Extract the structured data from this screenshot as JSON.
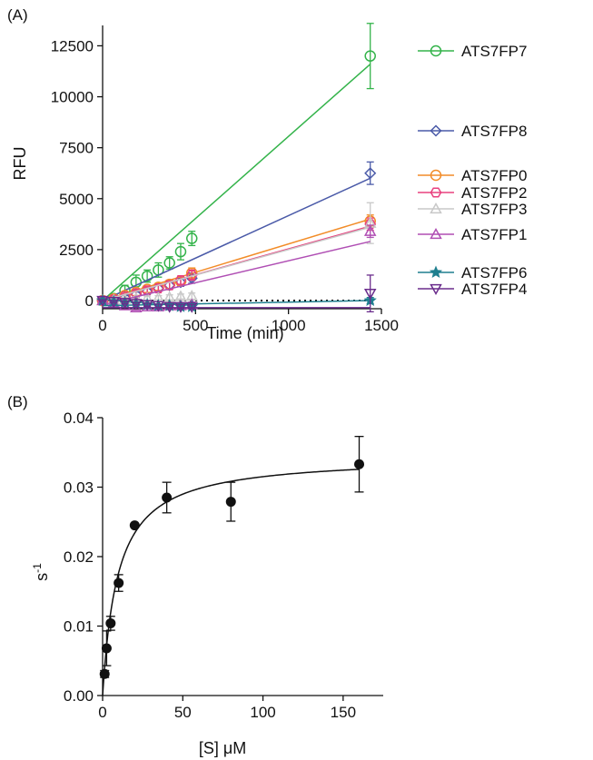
{
  "panels": {
    "a": "(A)",
    "b": "(B)"
  },
  "chart_data": [
    {
      "type": "line",
      "xlabel": "Time (min)",
      "ylabel": "RFU",
      "xlim": [
        0,
        1500
      ],
      "ylim": [
        -400,
        13500
      ],
      "xticks": [
        0,
        500,
        1000,
        1500
      ],
      "yticks": [
        0,
        2500,
        5000,
        7500,
        10000,
        12500
      ],
      "xtick_labels": [
        "0",
        "500",
        "1000",
        "1500"
      ],
      "ytick_labels": [
        "0",
        "2500",
        "5000",
        "7500",
        "10000",
        "12500"
      ],
      "legend_position": "right",
      "baseline": {
        "style": "dotted",
        "x": [
          0,
          1440
        ],
        "y": [
          0,
          0
        ]
      },
      "series": [
        {
          "name": "ATS7FP7",
          "color": "#33b34a",
          "marker": "circle",
          "x": [
            0,
            60,
            120,
            180,
            240,
            300,
            360,
            420,
            480,
            1440
          ],
          "y": [
            0,
            100,
            500,
            900,
            1200,
            1500,
            1850,
            2400,
            3050,
            12000
          ],
          "err": [
            80,
            150,
            250,
            350,
            300,
            350,
            300,
            400,
            350,
            1600
          ],
          "fit": [
            [
              0,
              0
            ],
            [
              1440,
              11600
            ]
          ]
        },
        {
          "name": "ATS7FP8",
          "color": "#4a5aa8",
          "marker": "diamond",
          "x": [
            0,
            60,
            120,
            180,
            240,
            300,
            360,
            420,
            480,
            1440
          ],
          "y": [
            0,
            50,
            150,
            300,
            450,
            600,
            750,
            900,
            1100,
            6250
          ],
          "err": [
            60,
            80,
            100,
            120,
            150,
            150,
            200,
            200,
            250,
            550
          ],
          "fit": [
            [
              0,
              0
            ],
            [
              1440,
              6000
            ]
          ]
        },
        {
          "name": "ATS7FP0",
          "color": "#f28c28",
          "marker": "circle",
          "x": [
            0,
            60,
            120,
            180,
            240,
            300,
            360,
            420,
            480,
            1440
          ],
          "y": [
            0,
            80,
            250,
            400,
            550,
            650,
            800,
            950,
            1350,
            3900
          ],
          "err": [
            60,
            100,
            150,
            150,
            150,
            150,
            200,
            200,
            250,
            300
          ],
          "fit": [
            [
              0,
              0
            ],
            [
              1440,
              4000
            ]
          ]
        },
        {
          "name": "ATS7FP2",
          "color": "#e8407e",
          "marker": "hexagon",
          "x": [
            0,
            60,
            120,
            180,
            240,
            300,
            360,
            420,
            480,
            1440
          ],
          "y": [
            0,
            50,
            200,
            350,
            500,
            600,
            750,
            1000,
            1250,
            3750
          ],
          "err": [
            60,
            100,
            120,
            150,
            150,
            150,
            200,
            200,
            250,
            300
          ],
          "fit": [
            [
              0,
              0
            ],
            [
              1440,
              3650
            ]
          ]
        },
        {
          "name": "ATS7FP3",
          "color": "#c8c8c8",
          "marker": "triangle-up",
          "x": [
            0,
            60,
            120,
            180,
            240,
            300,
            360,
            420,
            480,
            1440
          ],
          "y": [
            0,
            20,
            60,
            100,
            120,
            140,
            160,
            200,
            220,
            3800
          ],
          "err": [
            50,
            60,
            80,
            100,
            100,
            100,
            120,
            120,
            150,
            1000
          ],
          "fit": [
            [
              0,
              0
            ],
            [
              1440,
              3600
            ]
          ]
        },
        {
          "name": "ATS7FP1",
          "color": "#b04fb4",
          "marker": "triangle-up",
          "x": [
            0,
            60,
            120,
            180,
            240,
            300,
            360,
            420,
            480,
            1440
          ],
          "y": [
            0,
            -100,
            -250,
            -350,
            -300,
            -300,
            -250,
            -250,
            -200,
            3400
          ],
          "err": [
            50,
            80,
            100,
            120,
            100,
            100,
            100,
            100,
            120,
            300
          ],
          "fit": [
            [
              0,
              -200
            ],
            [
              1440,
              2900
            ]
          ]
        },
        {
          "name": "ATS7FP6",
          "color": "#1f7f8f",
          "marker": "star",
          "x": [
            0,
            60,
            120,
            180,
            240,
            300,
            360,
            420,
            480,
            1440
          ],
          "y": [
            0,
            -50,
            -100,
            -150,
            -200,
            -250,
            -250,
            -300,
            -300,
            0
          ],
          "err": [
            40,
            50,
            60,
            60,
            60,
            80,
            80,
            80,
            80,
            150
          ],
          "fit": [
            [
              0,
              -250
            ],
            [
              1440,
              0
            ]
          ]
        },
        {
          "name": "ATS7FP4",
          "color": "#6a2c8c",
          "marker": "triangle-down",
          "x": [
            0,
            60,
            120,
            180,
            240,
            300,
            360,
            420,
            480,
            1440
          ],
          "y": [
            0,
            -50,
            -100,
            -150,
            -200,
            -250,
            -300,
            -300,
            -300,
            350
          ],
          "err": [
            40,
            50,
            60,
            60,
            80,
            80,
            80,
            100,
            100,
            900
          ],
          "fit": [
            [
              0,
              -350
            ],
            [
              1440,
              -350
            ]
          ]
        }
      ]
    },
    {
      "type": "scatter",
      "xlabel": "[S] μM",
      "ylabel": "s-1",
      "ylabel_base": "s",
      "ylabel_sup": "-1",
      "xlim": [
        0,
        175
      ],
      "ylim": [
        0,
        0.04
      ],
      "xticks": [
        0,
        50,
        100,
        150
      ],
      "yticks": [
        0,
        0.01,
        0.02,
        0.03,
        0.04
      ],
      "xtick_labels": [
        "0",
        "50",
        "100",
        "150"
      ],
      "ytick_labels": [
        "0.00",
        "0.01",
        "0.02",
        "0.03",
        "0.04"
      ],
      "marker_color": "#111111",
      "x": [
        1.25,
        2.5,
        5,
        10,
        20,
        40,
        80,
        160
      ],
      "y": [
        0.0031,
        0.0068,
        0.0104,
        0.0162,
        0.0245,
        0.0285,
        0.0279,
        0.0333
      ],
      "err": [
        0.0005,
        0.0025,
        0.001,
        0.0012,
        0.0,
        0.0022,
        0.0028,
        0.004
      ],
      "fit": {
        "model": "michaelis-menten",
        "vmax": 0.0345,
        "km": 9.5
      }
    }
  ]
}
